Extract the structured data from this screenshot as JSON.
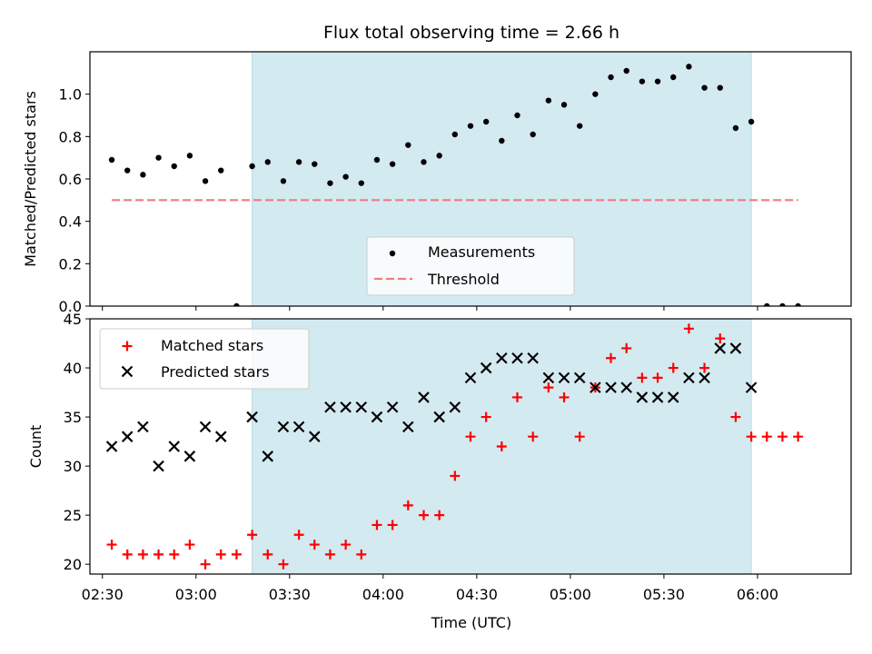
{
  "chart_data": [
    {
      "type": "scatter",
      "title": "Flux total observing time = 2.66 h",
      "xlabel": "",
      "ylabel": "Matched/Predicted stars",
      "ylim": [
        0,
        1.2
      ],
      "yticks": [
        "0.0",
        "0.2",
        "0.4",
        "0.6",
        "0.8",
        "1.0"
      ],
      "xlim": [
        "02:26",
        "06:30"
      ],
      "shaded_interval": [
        "03:18",
        "05:58"
      ],
      "shade_color": "#d4eaf1",
      "legend_position": "lower center",
      "series": [
        {
          "name": "Measurements",
          "marker": "dot",
          "color": "#000000",
          "x": [
            "02:33",
            "02:38",
            "02:43",
            "02:48",
            "02:53",
            "02:58",
            "03:03",
            "03:08",
            "03:13",
            "03:18",
            "03:23",
            "03:28",
            "03:33",
            "03:38",
            "03:43",
            "03:48",
            "03:53",
            "03:58",
            "04:03",
            "04:08",
            "04:13",
            "04:18",
            "04:23",
            "04:28",
            "04:33",
            "04:38",
            "04:43",
            "04:48",
            "04:53",
            "04:58",
            "05:03",
            "05:08",
            "05:13",
            "05:18",
            "05:23",
            "05:28",
            "05:33",
            "05:38",
            "05:43",
            "05:48",
            "05:53",
            "05:58",
            "06:03",
            "06:08",
            "06:13"
          ],
          "y": [
            0.69,
            0.64,
            0.62,
            0.7,
            0.66,
            0.71,
            0.59,
            0.64,
            0.0,
            0.66,
            0.68,
            0.59,
            0.68,
            0.67,
            0.58,
            0.61,
            0.58,
            0.69,
            0.67,
            0.76,
            0.68,
            0.71,
            0.81,
            0.85,
            0.87,
            0.78,
            0.9,
            0.81,
            0.97,
            0.95,
            0.85,
            1.0,
            1.08,
            1.11,
            1.06,
            1.06,
            1.08,
            1.13,
            1.03,
            1.03,
            0.84,
            0.87,
            0.0,
            0.0,
            0.0
          ]
        },
        {
          "name": "Threshold",
          "marker": "dashed-line",
          "color": "#f07c7c",
          "x": [
            "02:33",
            "06:13"
          ],
          "y": [
            0.5,
            0.5
          ]
        }
      ]
    },
    {
      "type": "scatter",
      "title": "",
      "xlabel": "Time (UTC)",
      "ylabel": "Count",
      "ylim": [
        19,
        45
      ],
      "yticks": [
        "20",
        "25",
        "30",
        "35",
        "40",
        "45"
      ],
      "xlim": [
        "02:26",
        "06:30"
      ],
      "xticks": [
        "02:30",
        "03:00",
        "03:30",
        "04:00",
        "04:30",
        "05:00",
        "05:30",
        "06:00"
      ],
      "shaded_interval": [
        "03:18",
        "05:58"
      ],
      "shade_color": "#d4eaf1",
      "legend_position": "upper left",
      "series": [
        {
          "name": "Matched stars",
          "marker": "plus",
          "color": "#ff0000",
          "x": [
            "02:33",
            "02:38",
            "02:43",
            "02:48",
            "02:53",
            "02:58",
            "03:03",
            "03:08",
            "03:13",
            "03:18",
            "03:23",
            "03:28",
            "03:33",
            "03:38",
            "03:43",
            "03:48",
            "03:53",
            "03:58",
            "04:03",
            "04:08",
            "04:13",
            "04:18",
            "04:23",
            "04:28",
            "04:33",
            "04:38",
            "04:43",
            "04:48",
            "04:53",
            "04:58",
            "05:03",
            "05:08",
            "05:13",
            "05:18",
            "05:23",
            "05:28",
            "05:33",
            "05:38",
            "05:43",
            "05:48",
            "05:53",
            "05:58",
            "06:03",
            "06:08",
            "06:13"
          ],
          "y": [
            22,
            21,
            21,
            21,
            21,
            22,
            20,
            21,
            21,
            23,
            21,
            20,
            23,
            22,
            21,
            22,
            21,
            24,
            24,
            26,
            25,
            25,
            29,
            33,
            35,
            32,
            37,
            33,
            38,
            37,
            33,
            38,
            41,
            42,
            39,
            39,
            40,
            44,
            40,
            43,
            35,
            33,
            33,
            33,
            33
          ]
        },
        {
          "name": "Predicted stars",
          "marker": "x",
          "color": "#000000",
          "x": [
            "02:33",
            "02:38",
            "02:43",
            "02:48",
            "02:53",
            "02:58",
            "03:03",
            "03:08",
            "03:18",
            "03:23",
            "03:28",
            "03:33",
            "03:38",
            "03:43",
            "03:48",
            "03:53",
            "03:58",
            "04:03",
            "04:08",
            "04:13",
            "04:18",
            "04:23",
            "04:28",
            "04:33",
            "04:38",
            "04:43",
            "04:48",
            "04:53",
            "04:58",
            "05:03",
            "05:08",
            "05:13",
            "05:18",
            "05:23",
            "05:28",
            "05:33",
            "05:38",
            "05:43",
            "05:48",
            "05:53",
            "05:58"
          ],
          "y": [
            32,
            33,
            34,
            30,
            32,
            31,
            34,
            33,
            35,
            31,
            34,
            34,
            33,
            36,
            36,
            36,
            35,
            36,
            34,
            37,
            35,
            36,
            39,
            40,
            41,
            41,
            41,
            39,
            39,
            39,
            38,
            38,
            38,
            37,
            37,
            37,
            39,
            39,
            42,
            42,
            38
          ]
        }
      ]
    }
  ]
}
